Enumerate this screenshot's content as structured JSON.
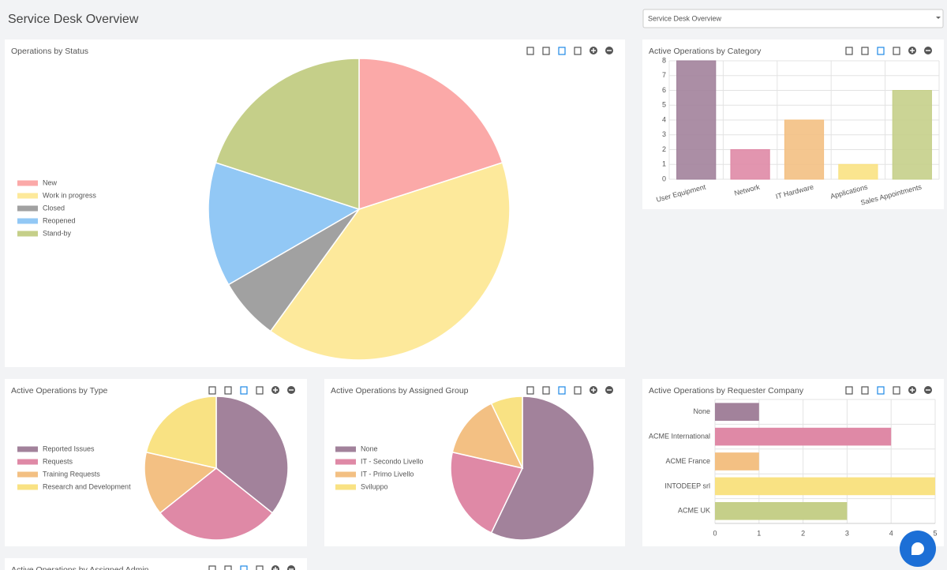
{
  "header": {
    "title": "Service Desk Overview",
    "selector": "Service Desk Overview"
  },
  "chart_data": [
    {
      "type": "pie",
      "title": "Operations by Status",
      "categories": [
        "New",
        "Work in progress",
        "Closed",
        "Reopened",
        "Stand-by"
      ],
      "values": [
        3,
        6,
        1,
        2,
        3
      ],
      "colors": [
        "#fba9a8",
        "#fde99b",
        "#a1a1a1",
        "#92c8f5",
        "#c5cf89"
      ],
      "legend": "left"
    },
    {
      "type": "bar",
      "title": "Active Operations by Category",
      "categories": [
        "User Equipment",
        "Network",
        "IT Hardware",
        "Applications",
        "Sales Appointments"
      ],
      "values": [
        8,
        2,
        4,
        1,
        6
      ],
      "colors": [
        "#a2829b",
        "#df89a6",
        "#f3c083",
        "#f9e283",
        "#c5cf89"
      ],
      "ylim": [
        0,
        8
      ],
      "yticks": [
        0,
        1,
        2,
        3,
        4,
        5,
        6,
        7,
        8
      ],
      "grid": true
    },
    {
      "type": "pie",
      "title": "Active Operations by Type",
      "categories": [
        "Reported Issues",
        "Requests",
        "Training Requests",
        "Research and Development"
      ],
      "values": [
        5,
        4,
        2,
        3
      ],
      "colors": [
        "#a2829b",
        "#df89a6",
        "#f3c083",
        "#f9e283"
      ],
      "legend": "left"
    },
    {
      "type": "pie",
      "title": "Active Operations by Assigned Group",
      "categories": [
        "None",
        "IT - Secondo Livello",
        "IT - Primo Livello",
        "Sviluppo"
      ],
      "values": [
        8,
        3,
        2,
        1
      ],
      "colors": [
        "#a2829b",
        "#df89a6",
        "#f3c083",
        "#f9e283"
      ],
      "legend": "left"
    },
    {
      "type": "hbar",
      "title": "Active Operations by Requester Company",
      "categories": [
        "None",
        "ACME International",
        "ACME France",
        "INTODEEP srl",
        "ACME UK"
      ],
      "values": [
        1,
        4,
        1,
        5,
        3
      ],
      "colors": [
        "#a2829b",
        "#df89a6",
        "#f3c083",
        "#f9e283",
        "#c5cf89"
      ],
      "xlim": [
        0,
        5
      ],
      "xticks": [
        0,
        1,
        2,
        3,
        4,
        5
      ],
      "grid": true
    }
  ],
  "extra_widget": {
    "title": "Active Operations by Assigned Admin"
  }
}
